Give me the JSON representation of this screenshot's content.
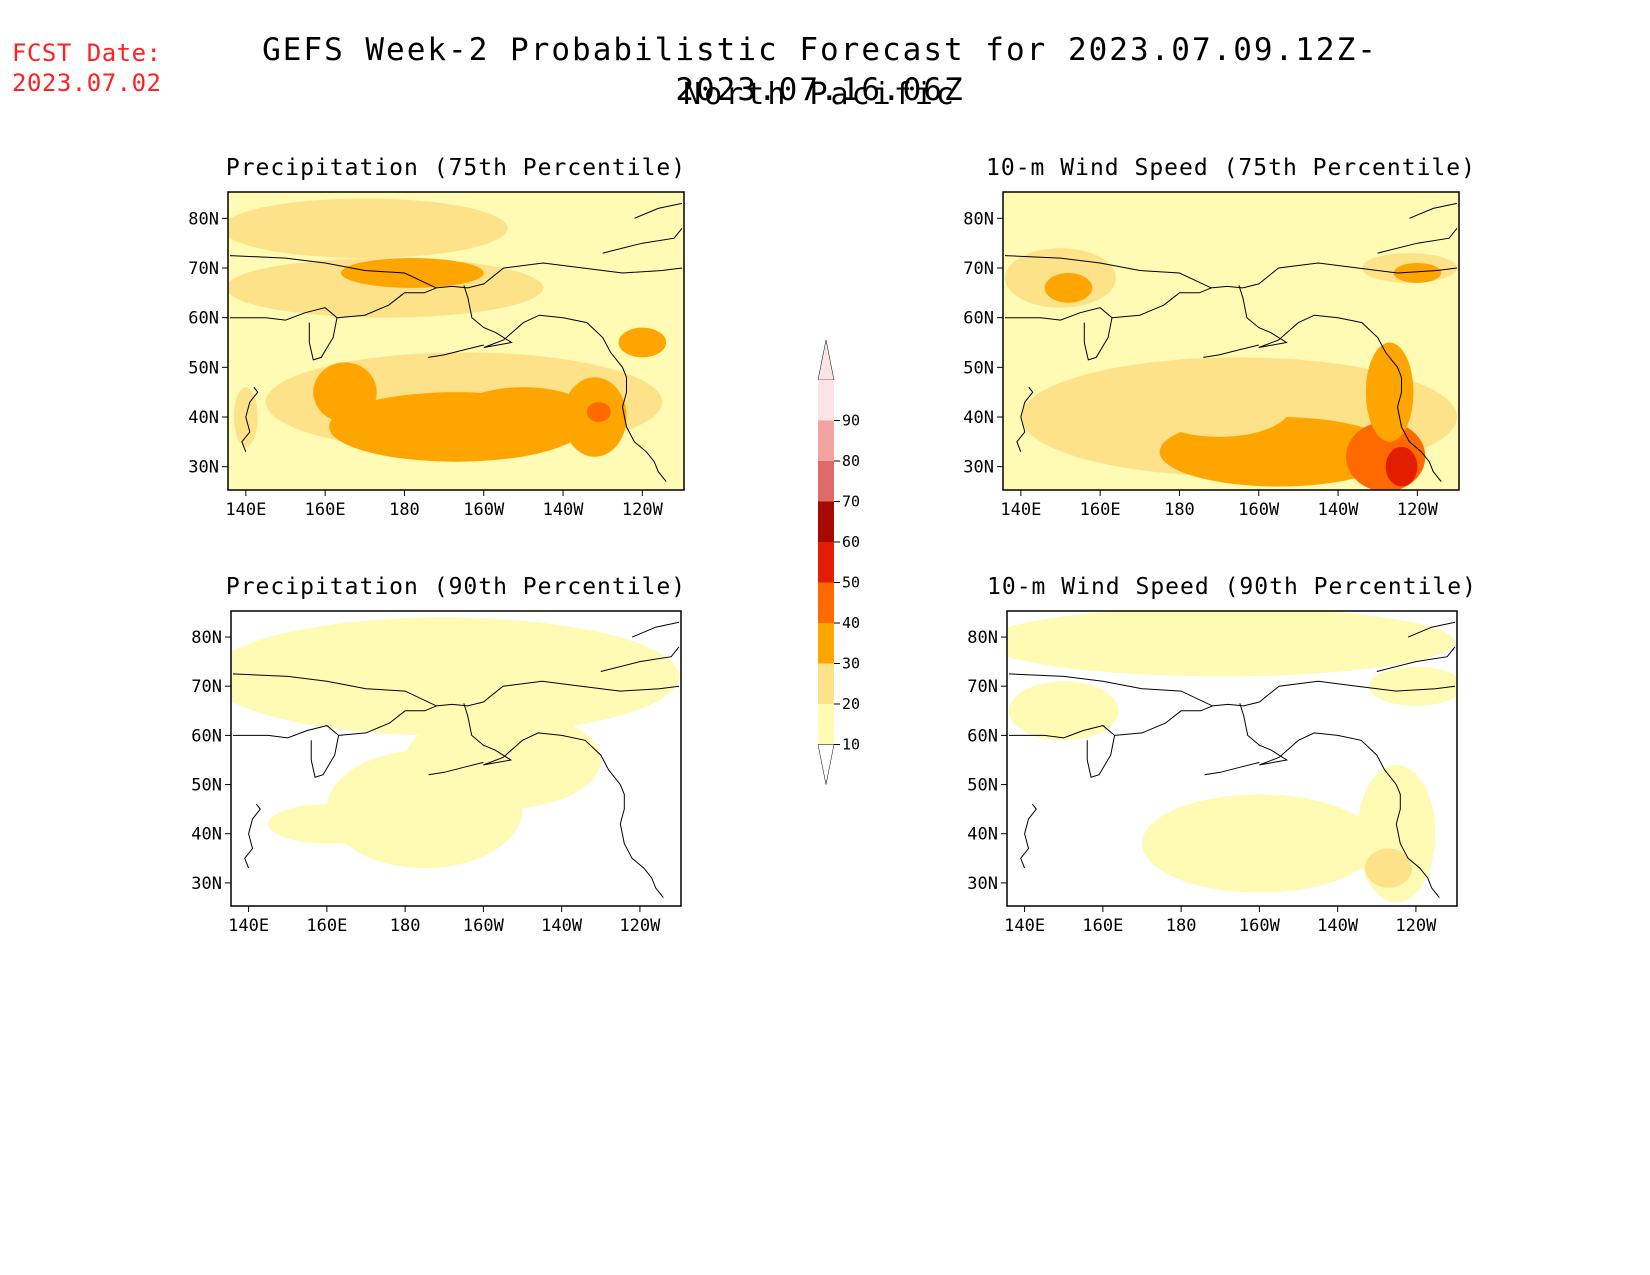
{
  "header": {
    "fcst_label": "FCST Date:",
    "fcst_date": "2023.07.02",
    "title": "GEFS Week-2 Probabilistic Forecast for 2023.07.09.12Z-2023.07.16.06Z",
    "subtitle": "North Pacific"
  },
  "axes": {
    "lat_ticks": [
      "80N",
      "70N",
      "60N",
      "50N",
      "40N",
      "30N"
    ],
    "lon_ticks": [
      "140E",
      "160E",
      "180",
      "160W",
      "140W",
      "120W"
    ]
  },
  "panels": [
    {
      "title": "Precipitation (75th Percentile)",
      "variable": "precipitation",
      "percentile": 75
    },
    {
      "title": "10-m Wind Speed (75th Percentile)",
      "variable": "wind_speed_10m",
      "percentile": 75
    },
    {
      "title": "Precipitation (90th Percentile)",
      "variable": "precipitation",
      "percentile": 90
    },
    {
      "title": "10-m Wind Speed (90th Percentile)",
      "variable": "wind_speed_10m",
      "percentile": 90
    }
  ],
  "colorbar": {
    "levels": [
      "10",
      "20",
      "30",
      "40",
      "50",
      "60",
      "70",
      "80",
      "90"
    ],
    "colors": [
      "#fffab4",
      "#fde28a",
      "#fea500",
      "#ff6a00",
      "#e41c00",
      "#a50a00",
      "#e06a6a",
      "#f4a3a3",
      "#fde3e6"
    ]
  },
  "colors": {
    "title_red": "#ff2020",
    "coastline": "#000000"
  }
}
